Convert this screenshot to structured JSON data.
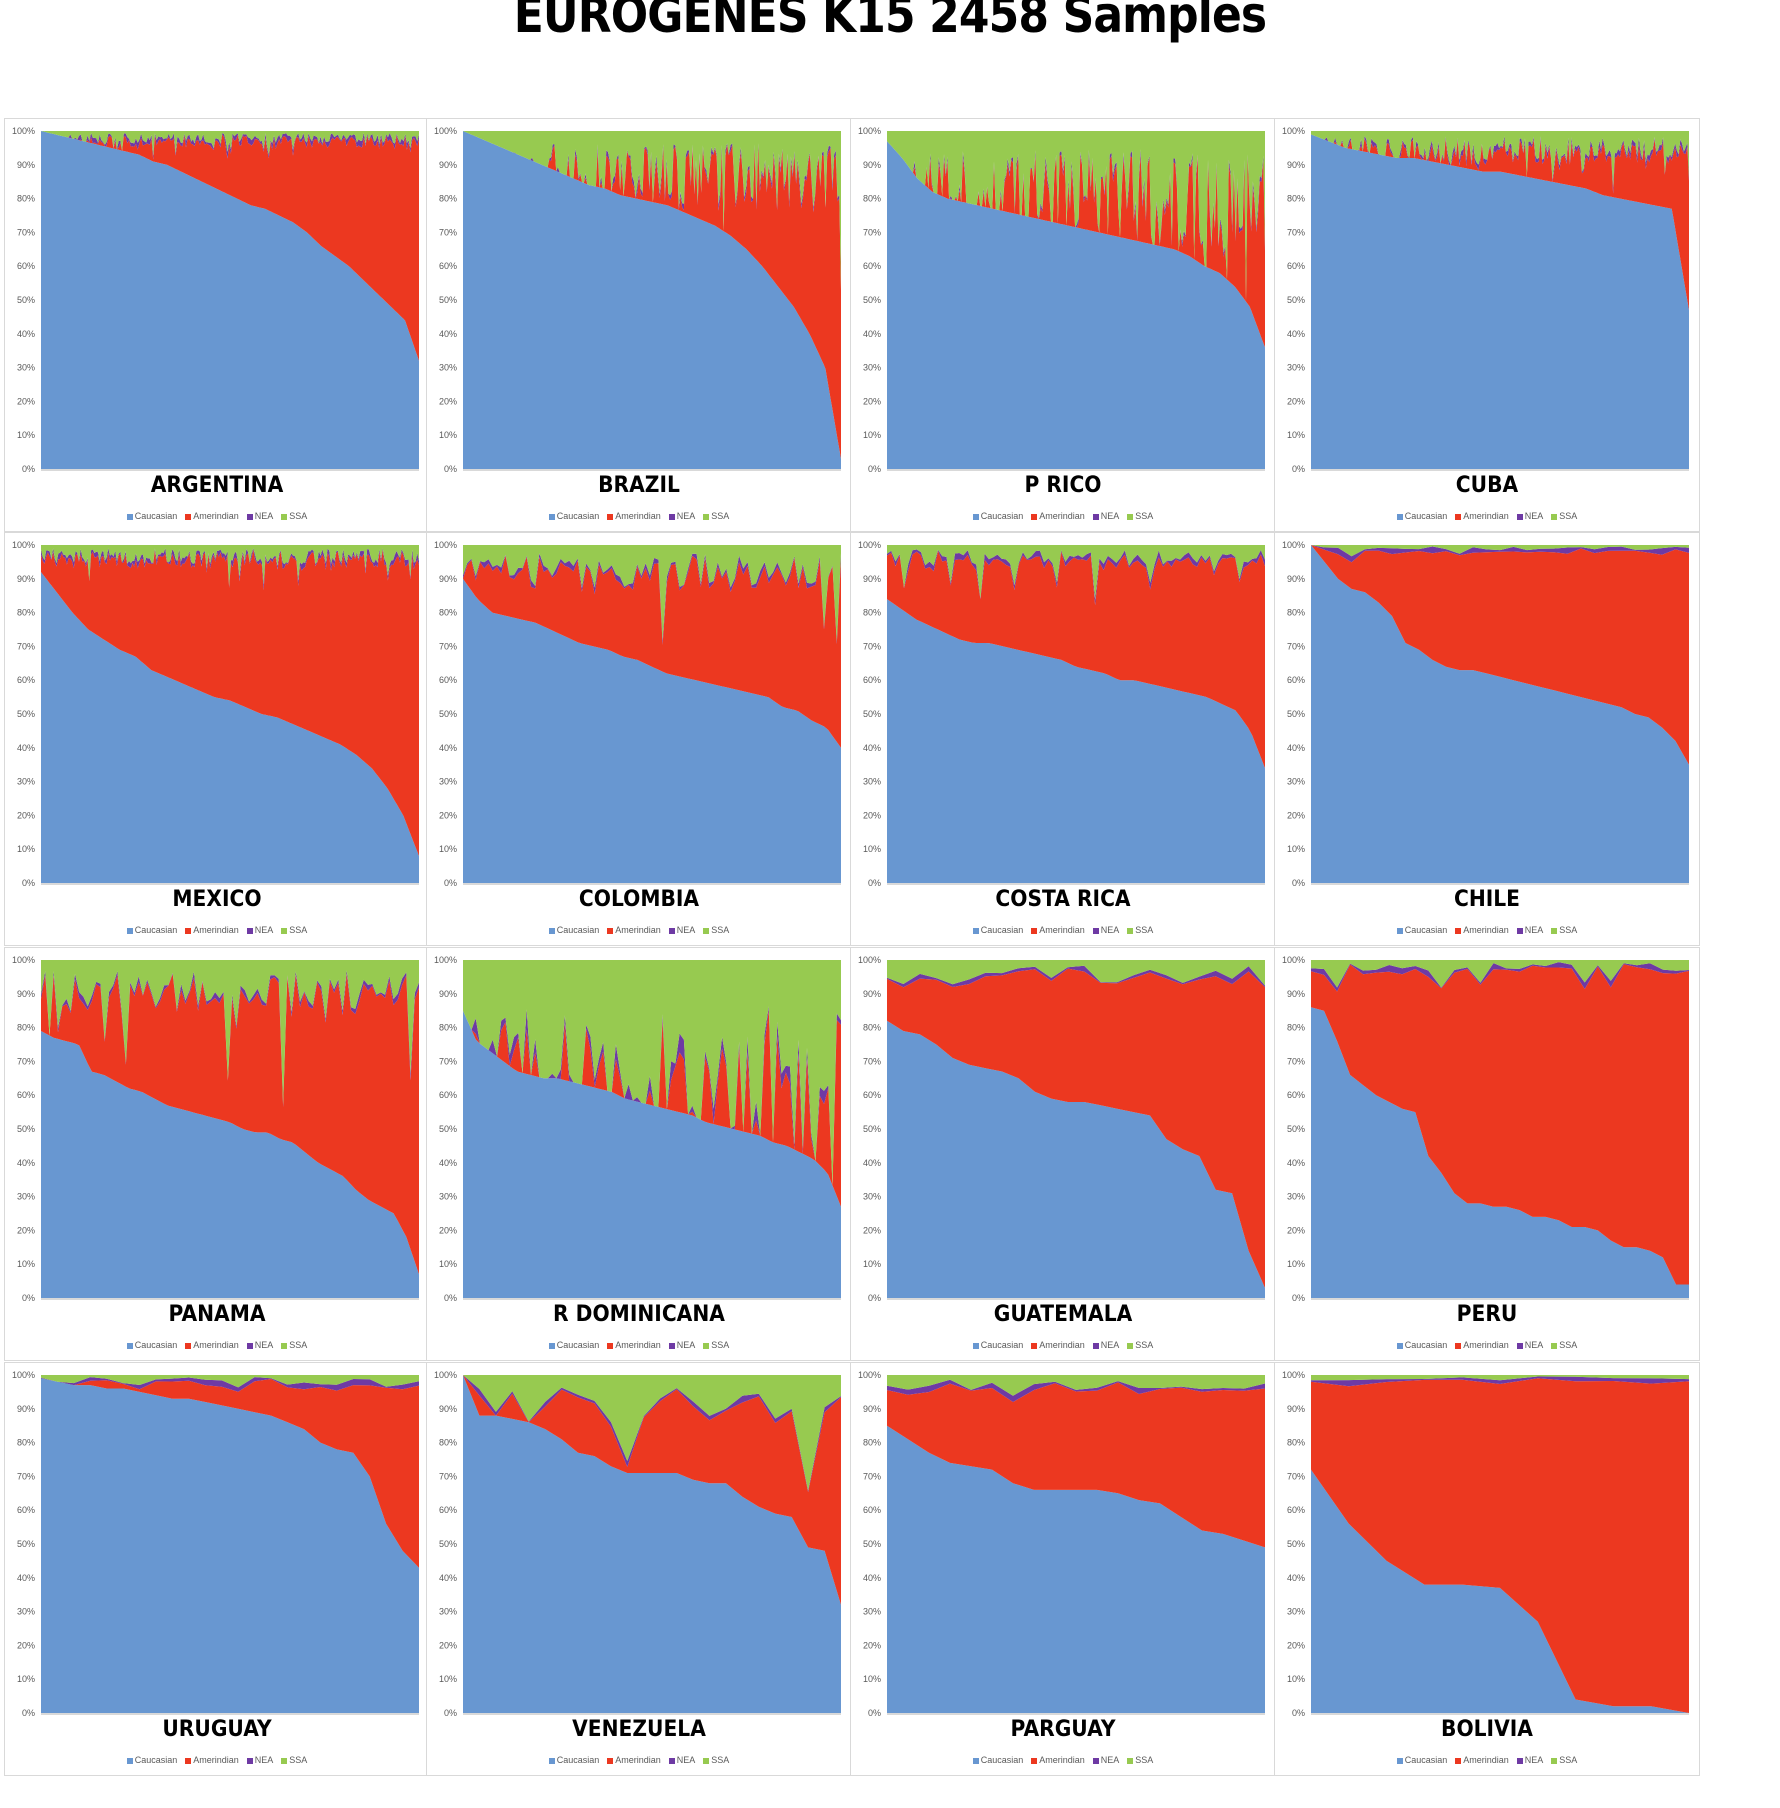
{
  "title": "EUROGENES K15 2458 Samples",
  "chart_data": {
    "type": "area",
    "stacked": "percent",
    "title": "EUROGENES K15 2458 Samples",
    "ylim": [
      0,
      100
    ],
    "yticks": [
      "0%",
      "10%",
      "20%",
      "30%",
      "40%",
      "50%",
      "60%",
      "70%",
      "80%",
      "90%",
      "100%"
    ],
    "legend": [
      "Caucasian",
      "Amerindian",
      "NEA",
      "SSA"
    ],
    "legend_position": "bottom",
    "colors": {
      "Caucasian": "#6897d1",
      "Amerindian": "#ec3820",
      "NEA": "#6e3aa4",
      "SSA": "#97ca50"
    },
    "panels": [
      {
        "name": "ARGENTINA",
        "caucasian": [
          100,
          99,
          98,
          97,
          96,
          95,
          94,
          93,
          91,
          90,
          88,
          86,
          84,
          82,
          80,
          78,
          77,
          75,
          73,
          70,
          66,
          63,
          60,
          56,
          52,
          48,
          44,
          32
        ],
        "ssa_avg": 2,
        "nea_avg": 1,
        "noise": "high"
      },
      {
        "name": "BRAZIL",
        "caucasian": [
          100,
          98,
          96,
          94,
          92,
          90,
          88,
          86,
          84,
          83,
          81,
          80,
          79,
          78,
          76,
          74,
          72,
          69,
          65,
          60,
          54,
          48,
          40,
          30,
          3
        ],
        "ssa_avg": 12,
        "nea_avg": 1,
        "noise": "high"
      },
      {
        "name": "P RICO",
        "caucasian": [
          97,
          92,
          86,
          82,
          80,
          79,
          78,
          77,
          76,
          75,
          74,
          73,
          72,
          71,
          70,
          69,
          68,
          67,
          66,
          65,
          63,
          60,
          58,
          54,
          48,
          36
        ],
        "ssa_avg": 18,
        "nea_avg": 1,
        "noise": "high"
      },
      {
        "name": "CUBA",
        "caucasian": [
          99,
          97,
          95,
          94,
          93,
          92,
          92,
          91,
          90,
          89,
          88,
          88,
          87,
          86,
          85,
          84,
          83,
          81,
          80,
          79,
          78,
          77,
          47
        ],
        "ssa_avg": 5,
        "nea_avg": 1,
        "noise": "high"
      },
      {
        "name": "MEXICO",
        "caucasian": [
          92,
          86,
          80,
          75,
          72,
          69,
          67,
          63,
          61,
          59,
          57,
          55,
          54,
          52,
          50,
          49,
          47,
          45,
          43,
          41,
          38,
          34,
          28,
          20,
          8
        ],
        "ssa_avg": 3,
        "nea_avg": 1,
        "noise": "high"
      },
      {
        "name": "COLOMBIA",
        "caucasian": [
          90,
          84,
          80,
          79,
          78,
          77,
          75,
          73,
          71,
          70,
          69,
          67,
          66,
          64,
          62,
          61,
          60,
          59,
          58,
          57,
          56,
          55,
          52,
          51,
          48,
          46,
          40
        ],
        "ssa_avg": 8,
        "nea_avg": 1,
        "noise": "medium"
      },
      {
        "name": "COSTA RICA",
        "caucasian": [
          84,
          81,
          78,
          76,
          74,
          72,
          71,
          71,
          70,
          69,
          68,
          67,
          66,
          64,
          63,
          62,
          60,
          60,
          59,
          58,
          57,
          56,
          55,
          53,
          51,
          45,
          34
        ],
        "ssa_avg": 4,
        "nea_avg": 1,
        "noise": "medium"
      },
      {
        "name": "CHILE",
        "caucasian": [
          100,
          95,
          90,
          87,
          86,
          83,
          79,
          71,
          69,
          66,
          64,
          63,
          63,
          62,
          61,
          60,
          59,
          58,
          57,
          56,
          55,
          54,
          53,
          52,
          50,
          49,
          46,
          42,
          35
        ],
        "ssa_avg": 1,
        "nea_avg": 1,
        "noise": "low"
      },
      {
        "name": "PANAMA",
        "caucasian": [
          79,
          77,
          76,
          75,
          67,
          66,
          64,
          62,
          61,
          59,
          57,
          56,
          55,
          54,
          53,
          52,
          50,
          49,
          49,
          47,
          46,
          43,
          40,
          38,
          36,
          32,
          29,
          27,
          25,
          18,
          7
        ],
        "ssa_avg": 10,
        "nea_avg": 1,
        "noise": "medium"
      },
      {
        "name": "R DOMINICANA",
        "caucasian": [
          85,
          76,
          73,
          70,
          67,
          66,
          65,
          65,
          64,
          63,
          62,
          61,
          59,
          58,
          57,
          56,
          55,
          54,
          52,
          51,
          50,
          49,
          48,
          46,
          45,
          43,
          41,
          37,
          27
        ],
        "ssa_avg": 38,
        "nea_avg": 3,
        "noise": "medium"
      },
      {
        "name": "GUATEMALA",
        "caucasian": [
          82,
          79,
          78,
          75,
          71,
          69,
          68,
          67,
          65,
          61,
          59,
          58,
          58,
          57,
          56,
          55,
          54,
          47,
          44,
          42,
          32,
          31,
          14,
          3
        ],
        "ssa_avg": 5,
        "nea_avg": 1,
        "noise": "low"
      },
      {
        "name": "PERU",
        "caucasian": [
          86,
          85,
          76,
          66,
          63,
          60,
          58,
          56,
          55,
          42,
          37,
          31,
          28,
          28,
          27,
          27,
          26,
          24,
          24,
          23,
          21,
          21,
          20,
          17,
          15,
          15,
          14,
          12,
          4,
          4
        ],
        "ssa_avg": 2,
        "nea_avg": 1,
        "noise": "low"
      },
      {
        "name": "URUGUAY",
        "caucasian": [
          99,
          98,
          97,
          97,
          96,
          96,
          95,
          94,
          93,
          93,
          92,
          91,
          90,
          89,
          88,
          86,
          84,
          80,
          78,
          77,
          70,
          56,
          48,
          43
        ],
        "ssa_avg": 2,
        "nea_avg": 1,
        "noise": "low"
      },
      {
        "name": "VENEZUELA",
        "caucasian": [
          100,
          88,
          88,
          87,
          86,
          84,
          81,
          77,
          76,
          73,
          71,
          71,
          71,
          71,
          69,
          68,
          68,
          64,
          61,
          59,
          58,
          49,
          48,
          32
        ],
        "ssa_avg": 9,
        "nea_avg": 1,
        "noise": "low"
      },
      {
        "name": "PARGUAY",
        "caucasian": [
          85,
          81,
          77,
          74,
          73,
          72,
          68,
          66,
          66,
          66,
          66,
          65,
          63,
          62,
          58,
          54,
          53,
          51,
          49
        ],
        "ssa_avg": 3,
        "nea_avg": 1,
        "noise": "low"
      },
      {
        "name": "BOLIVIA",
        "caucasian": [
          72,
          56,
          45,
          38,
          38,
          37,
          27,
          4,
          2,
          2,
          0
        ],
        "ssa_avg": 1,
        "nea_avg": 1,
        "noise": "low"
      }
    ]
  }
}
